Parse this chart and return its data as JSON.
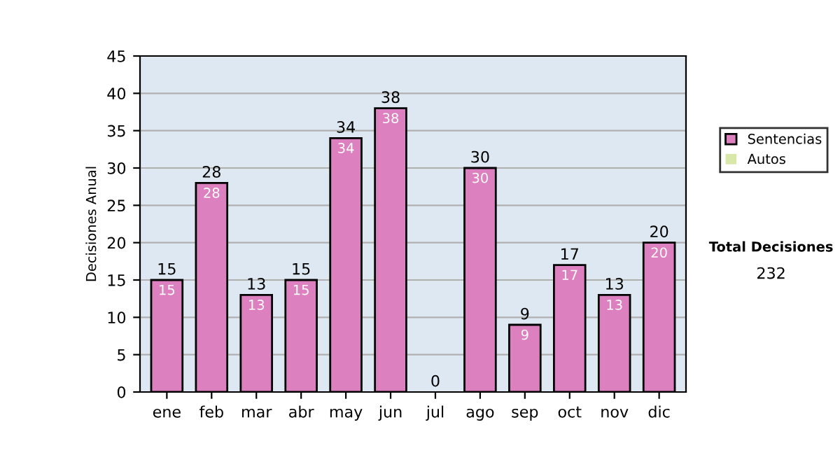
{
  "chart_data": {
    "type": "bar",
    "stacked": true,
    "ylabel": "Decisiones Anual",
    "categories": [
      "ene",
      "feb",
      "mar",
      "abr",
      "may",
      "jun",
      "jul",
      "ago",
      "sep",
      "oct",
      "nov",
      "dic"
    ],
    "series": [
      {
        "name": "Sentencias",
        "color": "#dd80c0",
        "values": [
          15,
          28,
          13,
          15,
          34,
          38,
          0,
          30,
          9,
          17,
          13,
          20
        ],
        "value_labels": [
          "15",
          "28",
          "13",
          "15",
          "34",
          "38",
          null,
          "30",
          "9",
          "17",
          "13",
          "20"
        ]
      },
      {
        "name": "Autos",
        "color": "#d8e8a8",
        "values": [
          0,
          0,
          0,
          0,
          0,
          0,
          0,
          0,
          0,
          0,
          0,
          0
        ]
      }
    ],
    "totals": [
      "15",
      "28",
      "13",
      "15",
      "34",
      "38",
      "0",
      "30",
      "9",
      "17",
      "13",
      "20"
    ],
    "ylim": [
      0,
      45
    ],
    "yticks": [
      0,
      5,
      10,
      15,
      20,
      25,
      30,
      35,
      40,
      45
    ],
    "grid": "y",
    "legend": "right",
    "annotations": [
      "Total Decisiones",
      "232"
    ]
  }
}
